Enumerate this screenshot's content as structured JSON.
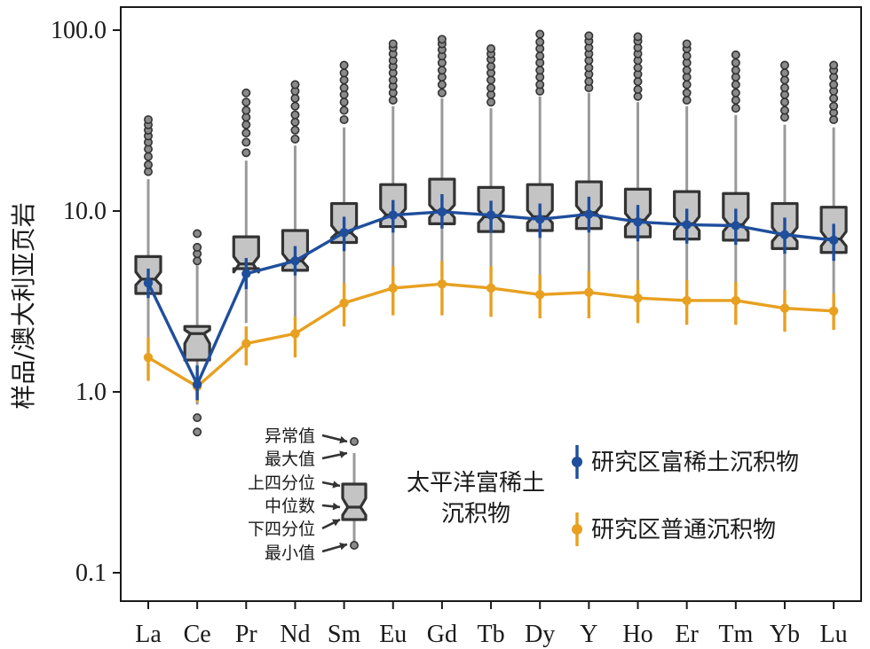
{
  "chart_data": {
    "type": "box+line",
    "ylabel": "样品/澳大利亚页岩",
    "yscale": "log",
    "ylim": [
      0.07,
      130
    ],
    "yticks": [
      {
        "value": 0.1,
        "label": "0.1"
      },
      {
        "value": 1,
        "label": "1.0"
      },
      {
        "value": 10,
        "label": "10.0"
      },
      {
        "value": 100,
        "label": "100.0"
      }
    ],
    "categories": [
      "La",
      "Ce",
      "Pr",
      "Nd",
      "Sm",
      "Eu",
      "Gd",
      "Tb",
      "Dy",
      "Y",
      "Ho",
      "Er",
      "Tm",
      "Yb",
      "Lu"
    ],
    "boxes_label": [
      "太平洋富稀土",
      "沉积物"
    ],
    "boxes": [
      {
        "q1": 3.5,
        "median": 4.2,
        "q3": 5.6,
        "notch_lo": 3.9,
        "notch_hi": 4.6,
        "wlo": 2.0,
        "whi": 15.0,
        "outliers": [
          16.5,
          18,
          20,
          22,
          24,
          26,
          28,
          30,
          32
        ]
      },
      {
        "q1": 1.5,
        "median": 2.1,
        "q3": 2.3,
        "notch_lo": 1.85,
        "notch_hi": 2.2,
        "wlo": 0.85,
        "whi": 5.0,
        "outliers": [
          5.3,
          5.8,
          6.3,
          7.5,
          0.72,
          0.6
        ]
      },
      {
        "q1": 4.8,
        "median": 5.1,
        "q3": 7.2,
        "notch_lo": 4.6,
        "notch_hi": 5.6,
        "wlo": 2.4,
        "whi": 19,
        "outliers": [
          21,
          24,
          27,
          30,
          33,
          36,
          40,
          45
        ]
      },
      {
        "q1": 4.7,
        "median": 5.3,
        "q3": 7.8,
        "notch_lo": 4.9,
        "notch_hi": 5.8,
        "wlo": 2.6,
        "whi": 23,
        "outliers": [
          25,
          28,
          31,
          34,
          38,
          42,
          46,
          50
        ]
      },
      {
        "q1": 6.7,
        "median": 7.6,
        "q3": 11.0,
        "notch_lo": 7.1,
        "notch_hi": 8.3,
        "wlo": 3.5,
        "whi": 29,
        "outliers": [
          32,
          36,
          40,
          44,
          48,
          53,
          58,
          64
        ]
      },
      {
        "q1": 8.2,
        "median": 9.5,
        "q3": 14.0,
        "notch_lo": 8.8,
        "notch_hi": 10.3,
        "wlo": 4.1,
        "whi": 38,
        "outliers": [
          41,
          45,
          49,
          53,
          58,
          63,
          68,
          74,
          80,
          84
        ]
      },
      {
        "q1": 8.5,
        "median": 10.0,
        "q3": 15.0,
        "notch_lo": 9.2,
        "notch_hi": 10.8,
        "wlo": 4.3,
        "whi": 42,
        "outliers": [
          45,
          50,
          55,
          60,
          66,
          72,
          78,
          84,
          89
        ]
      },
      {
        "q1": 7.7,
        "median": 9.3,
        "q3": 13.5,
        "notch_lo": 8.6,
        "notch_hi": 10.1,
        "wlo": 3.9,
        "whi": 37,
        "outliers": [
          40,
          44,
          48,
          53,
          58,
          63,
          69,
          74,
          79
        ]
      },
      {
        "q1": 7.8,
        "median": 9.3,
        "q3": 14.0,
        "notch_lo": 8.6,
        "notch_hi": 10.1,
        "wlo": 3.9,
        "whi": 43,
        "outliers": [
          46,
          50,
          55,
          60,
          66,
          72,
          79,
          86,
          95
        ]
      },
      {
        "q1": 8.0,
        "median": 9.8,
        "q3": 14.5,
        "notch_lo": 9.0,
        "notch_hi": 10.7,
        "wlo": 4.0,
        "whi": 45,
        "outliers": [
          48,
          52,
          57,
          62,
          68,
          74,
          80,
          87,
          93
        ]
      },
      {
        "q1": 7.2,
        "median": 8.9,
        "q3": 13.2,
        "notch_lo": 8.2,
        "notch_hi": 9.7,
        "wlo": 3.6,
        "whi": 40,
        "outliers": [
          43,
          47,
          52,
          57,
          62,
          68,
          74,
          80,
          87,
          92
        ]
      },
      {
        "q1": 7.0,
        "median": 8.5,
        "q3": 12.8,
        "notch_lo": 7.8,
        "notch_hi": 9.3,
        "wlo": 3.5,
        "whi": 38,
        "outliers": [
          41,
          45,
          50,
          55,
          60,
          66,
          72,
          79,
          84
        ]
      },
      {
        "q1": 6.9,
        "median": 8.4,
        "q3": 12.5,
        "notch_lo": 7.7,
        "notch_hi": 9.2,
        "wlo": 3.4,
        "whi": 34,
        "outliers": [
          37,
          41,
          45,
          50,
          55,
          60,
          66,
          73
        ]
      },
      {
        "q1": 6.2,
        "median": 7.4,
        "q3": 11.0,
        "notch_lo": 6.8,
        "notch_hi": 8.1,
        "wlo": 3.0,
        "whi": 30,
        "outliers": [
          33,
          36,
          40,
          44,
          48,
          53,
          58,
          64
        ]
      },
      {
        "q1": 5.9,
        "median": 7.0,
        "q3": 10.5,
        "notch_lo": 6.4,
        "notch_hi": 7.7,
        "wlo": 2.8,
        "whi": 29,
        "outliers": [
          32,
          35,
          38,
          42,
          46,
          50,
          55,
          60,
          64
        ]
      }
    ],
    "series": [
      {
        "name": "研究区富稀土沉积物",
        "color": "#1f4e9c",
        "values": [
          4.0,
          1.1,
          4.5,
          5.3,
          7.6,
          9.5,
          9.9,
          9.5,
          9.0,
          9.6,
          8.7,
          8.4,
          8.3,
          7.4,
          6.9
        ],
        "err_lo": [
          3.3,
          0.9,
          3.7,
          4.4,
          6.0,
          7.6,
          8.0,
          7.6,
          7.1,
          7.6,
          6.8,
          6.6,
          6.5,
          5.8,
          5.3
        ],
        "err_hi": [
          4.8,
          1.4,
          5.5,
          6.4,
          9.3,
          11.5,
          12.4,
          11.4,
          11.0,
          12.0,
          10.8,
          10.3,
          10.3,
          9.2,
          8.5
        ]
      },
      {
        "name": "研究区普通沉积物",
        "color": "#e8a020",
        "values": [
          1.55,
          1.07,
          1.85,
          2.1,
          3.1,
          3.75,
          3.95,
          3.75,
          3.45,
          3.55,
          3.3,
          3.2,
          3.2,
          2.9,
          2.8
        ],
        "err_lo": [
          1.15,
          0.88,
          1.4,
          1.55,
          2.3,
          2.65,
          2.65,
          2.6,
          2.55,
          2.55,
          2.4,
          2.35,
          2.35,
          2.15,
          2.2
        ],
        "err_hi": [
          2.0,
          1.25,
          2.3,
          2.6,
          4.0,
          4.95,
          5.3,
          4.95,
          4.45,
          4.65,
          4.15,
          4.15,
          4.05,
          3.65,
          3.5
        ]
      }
    ],
    "grid": false,
    "legend_position": "right"
  },
  "inset": {
    "labels": [
      "异常值",
      "最大值",
      "上四分位",
      "中位数",
      "下四分位",
      "最小值"
    ]
  },
  "colors": {
    "box_fill": "#c4c4c4",
    "box_stroke": "#333333",
    "whisker": "#9a9a9a",
    "outlier_fill": "#8a8a8a",
    "outlier_stroke": "#333333"
  }
}
